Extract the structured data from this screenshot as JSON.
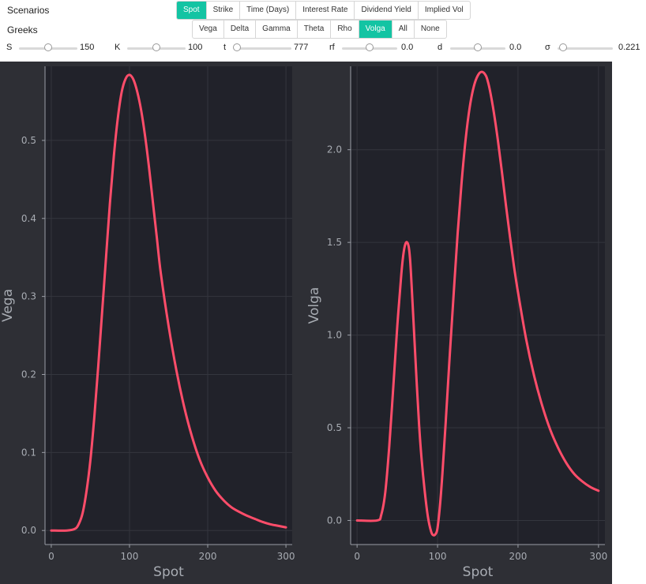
{
  "labels": {
    "scenarios": "Scenarios",
    "greeks": "Greeks"
  },
  "scenarios": [
    {
      "label": "Spot",
      "active": true
    },
    {
      "label": "Strike",
      "active": false
    },
    {
      "label": "Time (Days)",
      "active": false
    },
    {
      "label": "Interest Rate",
      "active": false
    },
    {
      "label": "Dividend Yield",
      "active": false
    },
    {
      "label": "Implied Vol",
      "active": false
    }
  ],
  "greeks": [
    {
      "label": "Vega",
      "active": false
    },
    {
      "label": "Delta",
      "active": false
    },
    {
      "label": "Gamma",
      "active": false
    },
    {
      "label": "Theta",
      "active": false
    },
    {
      "label": "Rho",
      "active": false
    },
    {
      "label": "Volga",
      "active": true
    },
    {
      "label": "All",
      "active": false
    },
    {
      "label": "None",
      "active": false
    }
  ],
  "sliders": [
    {
      "label": "S",
      "value": "150",
      "fraction": 0.5
    },
    {
      "label": "K",
      "value": "100",
      "fraction": 0.5
    },
    {
      "label": "t",
      "value": "777",
      "fraction": 0.02
    },
    {
      "label": "rf",
      "value": "0.0",
      "fraction": 0.5
    },
    {
      "label": "d",
      "value": "0.0",
      "fraction": 0.5
    },
    {
      "label": "σ",
      "value": "0.221",
      "fraction": 0.1
    }
  ],
  "colors": {
    "accent": "#13c4a3",
    "line": "#ff4d6a",
    "plot_bg": "#21222a",
    "outer_bg": "#2e2f35",
    "axis": "#9a9ea6"
  },
  "chart_data": [
    {
      "type": "line",
      "xlabel": "Spot",
      "ylabel": "Vega",
      "xlim": [
        -8,
        308
      ],
      "ylim": [
        -0.018,
        0.595
      ],
      "xticks": [
        0,
        100,
        200,
        300
      ],
      "yticks": [
        0.0,
        0.1,
        0.2,
        0.3,
        0.4,
        0.5
      ],
      "ytick_labels": [
        "0.0",
        "0.1",
        "0.2",
        "0.3",
        "0.4",
        "0.5"
      ],
      "x": [
        0,
        20,
        30,
        35,
        40,
        45,
        50,
        55,
        60,
        65,
        70,
        75,
        80,
        85,
        90,
        95,
        100,
        105,
        110,
        115,
        120,
        125,
        130,
        135,
        140,
        150,
        160,
        170,
        180,
        190,
        200,
        210,
        220,
        230,
        240,
        250,
        260,
        270,
        280,
        290,
        300
      ],
      "y": [
        0.0,
        0.0,
        0.002,
        0.008,
        0.022,
        0.05,
        0.09,
        0.145,
        0.21,
        0.28,
        0.35,
        0.42,
        0.48,
        0.528,
        0.562,
        0.579,
        0.584,
        0.578,
        0.562,
        0.538,
        0.505,
        0.465,
        0.42,
        0.375,
        0.33,
        0.262,
        0.205,
        0.158,
        0.12,
        0.09,
        0.068,
        0.051,
        0.039,
        0.03,
        0.024,
        0.019,
        0.015,
        0.011,
        0.008,
        0.006,
        0.004
      ]
    },
    {
      "type": "line",
      "xlabel": "Spot",
      "ylabel": "Volga",
      "xlim": [
        -8,
        308
      ],
      "ylim": [
        -0.13,
        2.45
      ],
      "xticks": [
        0,
        100,
        200,
        300
      ],
      "yticks": [
        0.0,
        0.5,
        1.0,
        1.5,
        2.0
      ],
      "ytick_labels": [
        "0.0",
        "0.5",
        "1.0",
        "1.5",
        "2.0"
      ],
      "x": [
        0,
        25,
        30,
        35,
        40,
        45,
        50,
        55,
        58,
        61,
        64,
        66,
        68,
        71,
        74,
        77,
        80,
        84,
        88,
        92,
        95,
        98,
        100,
        103,
        106,
        110,
        115,
        120,
        125,
        130,
        135,
        140,
        145,
        150,
        155,
        160,
        163,
        166,
        170,
        175,
        180,
        185,
        190,
        195,
        200,
        210,
        220,
        230,
        240,
        250,
        260,
        270,
        280,
        290,
        300
      ],
      "y": [
        0.0,
        0.0,
        0.03,
        0.15,
        0.4,
        0.72,
        1.05,
        1.33,
        1.45,
        1.5,
        1.48,
        1.4,
        1.25,
        1.0,
        0.75,
        0.52,
        0.34,
        0.16,
        0.02,
        -0.06,
        -0.08,
        -0.07,
        -0.04,
        0.08,
        0.25,
        0.52,
        0.88,
        1.22,
        1.55,
        1.83,
        2.06,
        2.23,
        2.34,
        2.4,
        2.42,
        2.4,
        2.36,
        2.3,
        2.2,
        2.05,
        1.88,
        1.7,
        1.53,
        1.37,
        1.23,
        0.98,
        0.78,
        0.62,
        0.49,
        0.39,
        0.31,
        0.25,
        0.21,
        0.18,
        0.16
      ]
    }
  ]
}
